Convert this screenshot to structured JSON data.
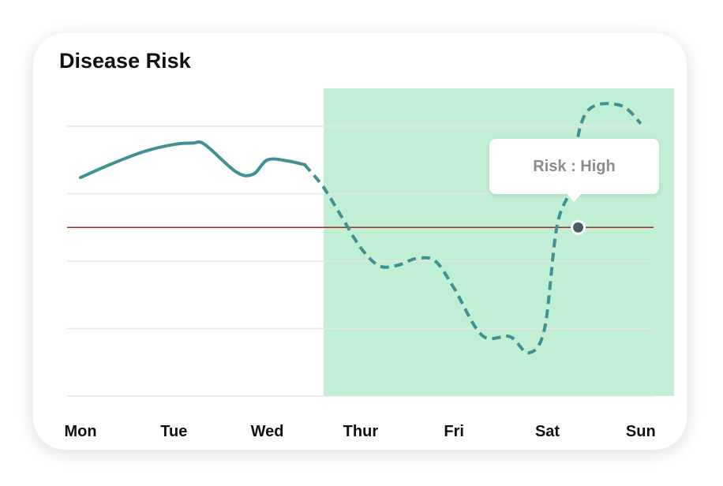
{
  "title": "Disease Risk",
  "tooltip": {
    "text": "Risk : High"
  },
  "colors": {
    "line": "#3f9193",
    "forecast_region": "#c0efd3",
    "threshold": "#a8271f",
    "grid": "#e6e6e6",
    "marker": "#4a5a66"
  },
  "chart_data": {
    "type": "line",
    "title": "Disease Risk",
    "categories": [
      "Mon",
      "Tue",
      "Wed",
      "Thur",
      "Fri",
      "Sat",
      "Sun"
    ],
    "ylim": [
      0,
      4
    ],
    "grid": true,
    "y_gridlines": [
      0,
      1,
      2,
      3,
      4
    ],
    "threshold": 2.5,
    "forecast_region": {
      "from": "Thur",
      "to": "Sun"
    },
    "series": [
      {
        "style": "solid",
        "x": [
          0,
          0.33,
          0.67,
          1.0,
          1.2,
          1.33,
          1.67,
          1.85,
          2.0,
          2.2,
          2.4
        ],
        "y": [
          3.24,
          3.44,
          3.62,
          3.73,
          3.75,
          3.73,
          3.32,
          3.29,
          3.5,
          3.49,
          3.43
        ]
      },
      {
        "style": "dashed",
        "x": [
          2.4,
          2.6,
          2.8,
          3.0,
          3.2,
          3.4,
          3.6,
          3.8,
          4.0,
          4.3,
          4.6,
          4.8,
          4.97,
          5.1,
          5.25,
          5.35,
          5.5,
          5.8,
          6.0
        ],
        "y": [
          3.43,
          3.1,
          2.65,
          2.2,
          1.93,
          1.94,
          2.04,
          2.0,
          1.6,
          0.9,
          0.88,
          0.64,
          1.0,
          2.5,
          3.1,
          3.98,
          4.3,
          4.3,
          4.04
        ]
      }
    ],
    "highlight_point": {
      "x": 5.33,
      "y": 2.5,
      "label": "Risk : High"
    }
  }
}
